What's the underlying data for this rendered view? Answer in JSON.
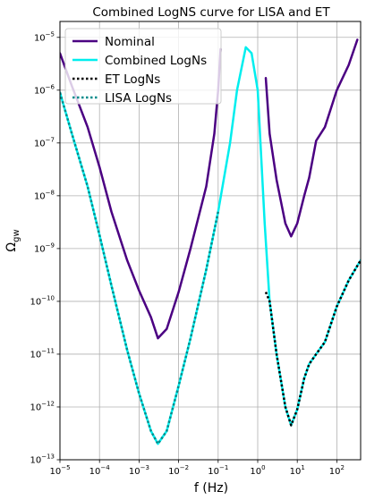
{
  "chart_data": {
    "type": "line",
    "title": "Combined LogNS curve for LISA and ET",
    "xlabel": "f (Hz)",
    "ylabel": "Ω_gw",
    "x_scale": "log",
    "y_scale": "log",
    "xlim": [
      1e-05,
      400
    ],
    "ylim": [
      1e-13,
      2e-05
    ],
    "grid": true,
    "legend_position": "top-left",
    "x_ticks": [
      {
        "value": 1e-05,
        "base": "10",
        "exp": "−5"
      },
      {
        "value": 0.0001,
        "base": "10",
        "exp": "−4"
      },
      {
        "value": 0.001,
        "base": "10",
        "exp": "−3"
      },
      {
        "value": 0.01,
        "base": "10",
        "exp": "−2"
      },
      {
        "value": 0.1,
        "base": "10",
        "exp": "−1"
      },
      {
        "value": 1,
        "base": "10",
        "exp": "0"
      },
      {
        "value": 10,
        "base": "10",
        "exp": "1"
      },
      {
        "value": 100,
        "base": "10",
        "exp": "2"
      }
    ],
    "y_ticks": [
      {
        "value": 1e-13,
        "base": "10",
        "exp": "−13"
      },
      {
        "value": 1e-12,
        "base": "10",
        "exp": "−12"
      },
      {
        "value": 1e-11,
        "base": "10",
        "exp": "−11"
      },
      {
        "value": 1e-10,
        "base": "10",
        "exp": "−10"
      },
      {
        "value": 1e-09,
        "base": "10",
        "exp": "−9"
      },
      {
        "value": 1e-08,
        "base": "10",
        "exp": "−8"
      },
      {
        "value": 1e-07,
        "base": "10",
        "exp": "−7"
      },
      {
        "value": 1e-06,
        "base": "10",
        "exp": "−6"
      },
      {
        "value": 1e-05,
        "base": "10",
        "exp": "−5"
      }
    ],
    "series": [
      {
        "name": "Nominal",
        "color": "#4b0082",
        "style": "solid",
        "segments": [
          [
            [
              1e-05,
              5e-06
            ],
            [
              2e-05,
              1.2e-06
            ],
            [
              5e-05,
              2e-07
            ],
            [
              0.0001,
              3.5e-08
            ],
            [
              0.0002,
              5e-09
            ],
            [
              0.0005,
              6e-10
            ],
            [
              0.001,
              1.6e-10
            ],
            [
              0.002,
              5e-11
            ],
            [
              0.003,
              2e-11
            ],
            [
              0.005,
              3e-11
            ],
            [
              0.01,
              1.5e-10
            ],
            [
              0.02,
              1e-09
            ],
            [
              0.05,
              1.5e-08
            ],
            [
              0.08,
              1.5e-07
            ],
            [
              0.1,
              1e-06
            ],
            [
              0.115,
              6e-06
            ]
          ],
          [
            [
              1.6,
              1.7e-06
            ],
            [
              2,
              1.5e-07
            ],
            [
              3,
              2e-08
            ],
            [
              5,
              3e-09
            ],
            [
              7,
              1.7e-09
            ],
            [
              10,
              3e-09
            ],
            [
              15,
              1e-08
            ],
            [
              20,
              2.2e-08
            ],
            [
              30,
              1.1e-07
            ],
            [
              50,
              2e-07
            ],
            [
              100,
              1e-06
            ],
            [
              200,
              3e-06
            ],
            [
              330,
              9e-06
            ]
          ]
        ]
      },
      {
        "name": "Combined LogNs",
        "color": "#00eeee",
        "style": "solid",
        "segments": [
          [
            [
              1e-05,
              9e-07
            ],
            [
              2e-05,
              1.5e-07
            ],
            [
              5e-05,
              1.5e-08
            ],
            [
              0.0001,
              1.8e-09
            ],
            [
              0.0002,
              2e-10
            ],
            [
              0.0005,
              1.2e-11
            ],
            [
              0.001,
              1.8e-12
            ],
            [
              0.002,
              3.5e-13
            ],
            [
              0.003,
              2e-13
            ],
            [
              0.005,
              3.5e-13
            ],
            [
              0.01,
              2.5e-12
            ],
            [
              0.02,
              2e-11
            ],
            [
              0.05,
              4e-10
            ],
            [
              0.1,
              5e-09
            ],
            [
              0.2,
              1e-07
            ],
            [
              0.3,
              1e-06
            ],
            [
              0.5,
              6.5e-06
            ],
            [
              0.7,
              5e-06
            ],
            [
              1,
              1e-06
            ],
            [
              1.5,
              3e-09
            ],
            [
              2,
              1e-10
            ],
            [
              3,
              1e-11
            ],
            [
              5,
              1e-12
            ],
            [
              7,
              4.5e-13
            ],
            [
              10,
              9e-13
            ],
            [
              15,
              3.5e-12
            ],
            [
              20,
              6.5e-12
            ],
            [
              30,
              1e-11
            ],
            [
              50,
              1.7e-11
            ],
            [
              100,
              8e-11
            ],
            [
              200,
              2.5e-10
            ],
            [
              400,
              6e-10
            ]
          ]
        ]
      },
      {
        "name": "ET LogNs",
        "color": "#000000",
        "style": "dotted",
        "segments": [
          [
            [
              1.6,
              1.5e-10
            ],
            [
              2,
              1e-10
            ],
            [
              3,
              1e-11
            ],
            [
              5,
              1e-12
            ],
            [
              7,
              4.5e-13
            ],
            [
              10,
              9e-13
            ],
            [
              15,
              3.5e-12
            ],
            [
              20,
              6.5e-12
            ],
            [
              30,
              1e-11
            ],
            [
              50,
              1.7e-11
            ],
            [
              100,
              8e-11
            ],
            [
              200,
              2.5e-10
            ],
            [
              400,
              6e-10
            ]
          ]
        ]
      },
      {
        "name": "LISA LogNs",
        "color": "#008b8b",
        "style": "dotted",
        "segments": [
          [
            [
              1e-05,
              9e-07
            ],
            [
              2e-05,
              1.5e-07
            ],
            [
              5e-05,
              1.5e-08
            ],
            [
              0.0001,
              1.8e-09
            ],
            [
              0.0002,
              2e-10
            ],
            [
              0.0005,
              1.2e-11
            ],
            [
              0.001,
              1.8e-12
            ],
            [
              0.002,
              3.5e-13
            ],
            [
              0.003,
              2e-13
            ],
            [
              0.005,
              3.5e-13
            ],
            [
              0.01,
              2.5e-12
            ],
            [
              0.02,
              2e-11
            ],
            [
              0.05,
              4e-10
            ],
            [
              0.1,
              5e-09
            ]
          ]
        ]
      }
    ]
  }
}
